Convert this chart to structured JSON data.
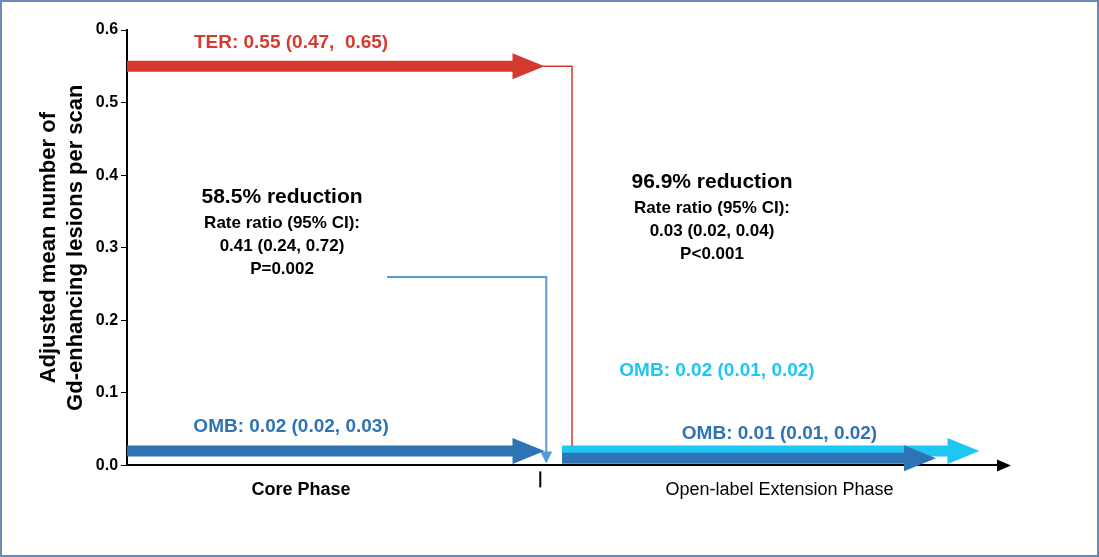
{
  "chart_data": {
    "type": "line",
    "ylabel": "Adjusted mean number of\nGd-enhancing lesions per scan",
    "categories": [
      null,
      null,
      null,
      null,
      "Core Phase",
      null,
      null,
      null,
      null,
      null,
      null,
      null,
      null,
      null,
      null,
      "Open-label Extension Phase",
      null,
      null,
      null,
      null,
      null
    ],
    "series": [
      {
        "color": "#d63a2e",
        "values": [
          0.55,
          0.55,
          0.55,
          0.55,
          0.55,
          0.55,
          0.55,
          0.55,
          0.55,
          0.55,
          null,
          null,
          null,
          null,
          null,
          null,
          null,
          null,
          null,
          null,
          null
        ]
      },
      {
        "color": "#2e74b5",
        "values": [
          0.02,
          0.02,
          0.02,
          0.02,
          0.02,
          0.02,
          0.02,
          0.02,
          0.02,
          0.02,
          null,
          null,
          null,
          null,
          null,
          null,
          null,
          null,
          null,
          null,
          null
        ]
      },
      {
        "color": "#1ec6f2",
        "values": [
          null,
          null,
          null,
          null,
          null,
          null,
          null,
          null,
          null,
          null,
          0.02,
          0.02,
          0.02,
          0.02,
          0.02,
          0.02,
          0.02,
          0.02,
          0.02,
          0.02,
          null
        ]
      },
      {
        "color": "#2e74b5",
        "values": [
          null,
          null,
          null,
          null,
          null,
          null,
          null,
          null,
          null,
          null,
          0.01,
          0.01,
          0.01,
          0.01,
          0.01,
          0.01,
          0.01,
          0.01,
          0.01,
          null,
          null
        ]
      }
    ],
    "ylim": [
      0,
      0.6
    ],
    "yticks": [
      {
        "value": 0,
        "label": "0.0"
      },
      0.1,
      0.2,
      0.3,
      0.4,
      0.5,
      0.6
    ],
    "grid": false,
    "legend": false,
    "marker": "none",
    "line_style": "solid",
    "annotations": [
      {
        "text": "TER: 0.55 (0.47,  0.65)",
        "x": "Core Phase",
        "y": 0.55
      },
      {
        "text": "OMB: 0.02 (0.02, 0.03)",
        "x": "Core Phase",
        "y": 0.02
      },
      {
        "text": "OMB: 0.01 (0.01, 0.02)",
        "x": "Open-label Extension Phase",
        "y": 0.01
      },
      "58.5% reduction\nRate ratio (95% CI):\n0.41 (0.24, 0.72)\nP=0.002",
      "96.9% reduction\nRate ratio (95% CI):\n0.03 (0.02, 0.04)\nP<0.001",
      "OMB: 0.02 (0.01, 0.02)"
    ]
  }
}
